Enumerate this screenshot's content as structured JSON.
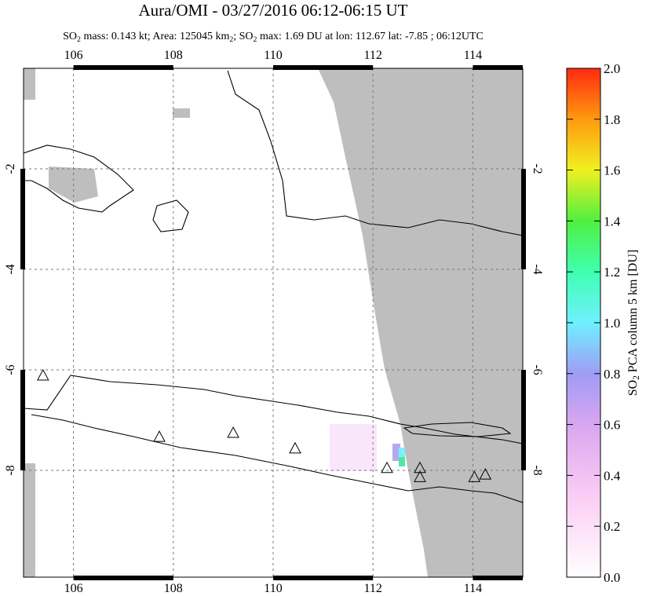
{
  "title": "Aura/OMI - 03/27/2016 06:12-06:15 UT",
  "subtitle": [
    "SO",
    "2",
    " mass: 0.143 kt; Area: 125045 km",
    "2",
    "; SO",
    "2",
    " max: 1.69 DU at lon: 112.67 lat: -7.85 ; 06:12UTC"
  ],
  "map": {
    "lonlim": [
      105,
      115
    ],
    "latlim": [
      -10.125,
      0
    ],
    "lonticks": [
      106,
      108,
      110,
      112,
      114
    ],
    "latticks": [
      -2,
      -4,
      -6,
      -8
    ],
    "volcanoes": [
      [
        105.39,
        -6.11
      ],
      [
        107.72,
        -7.33
      ],
      [
        109.2,
        -7.25
      ],
      [
        110.44,
        -7.56
      ],
      [
        112.28,
        -7.95
      ],
      [
        112.94,
        -7.95
      ],
      [
        112.94,
        -8.13
      ],
      [
        114.03,
        -8.13
      ],
      [
        114.25,
        -8.08
      ]
    ]
  },
  "colorbar": {
    "lim": [
      0,
      2
    ],
    "ticks": [
      {
        "value": 0,
        "label": "0.0"
      },
      {
        "value": 0.2,
        "label": "0.2"
      },
      {
        "value": 0.4,
        "label": "0.4"
      },
      {
        "value": 0.6,
        "label": "0.6"
      },
      {
        "value": 0.8,
        "label": "0.8"
      },
      {
        "value": 1,
        "label": "1.0"
      },
      {
        "value": 1.2,
        "label": "1.2"
      },
      {
        "value": 1.4,
        "label": "1.4"
      },
      {
        "value": 1.6,
        "label": "1.6"
      },
      {
        "value": 1.8,
        "label": "1.8"
      },
      {
        "value": 2,
        "label": "2.0"
      }
    ],
    "label": [
      "SO",
      "2",
      " PCA column 5 km [DU]"
    ]
  }
}
